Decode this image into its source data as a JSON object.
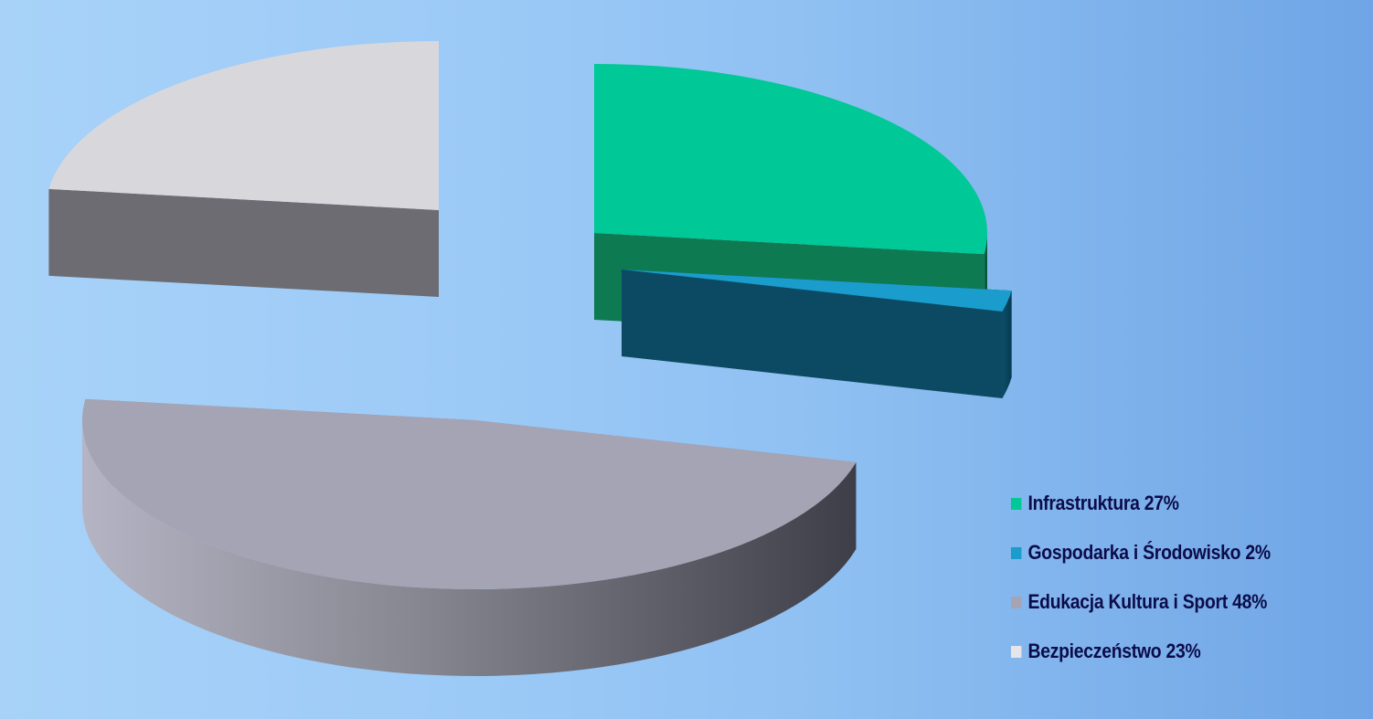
{
  "chart_data": {
    "type": "pie",
    "title": "",
    "slices": [
      {
        "label": "Infrastruktura",
        "value": 27,
        "legend_text": "Infrastruktura 27%",
        "color": "#00c896",
        "side_color": "#0a5a40"
      },
      {
        "label": "Gospodarka i Środowisko",
        "value": 2,
        "legend_text": "Gospodarka i Środowisko 2%",
        "color": "#1a9ccc",
        "side_color": "#0a4a66"
      },
      {
        "label": "Edukacja Kultura i Sport",
        "value": 48,
        "legend_text": "Edukacja Kultura i Sport 48%",
        "color": "#a4a4b4",
        "side_color": "#6e6e78"
      },
      {
        "label": "Bezpieczeństwo",
        "value": 23,
        "legend_text": "Bezpieczeństwo 23%",
        "color": "#d8d8dc",
        "side_color": "#7a7a80"
      }
    ],
    "legend_position": "bottom-right",
    "style": "3d-exploded"
  }
}
